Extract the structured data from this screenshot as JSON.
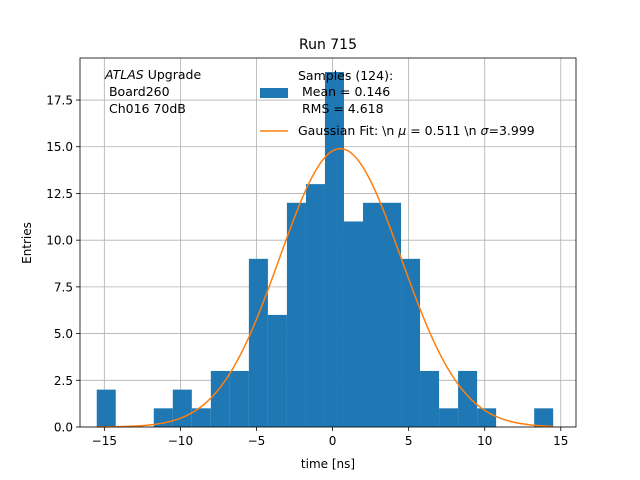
{
  "chart_data": {
    "type": "bar",
    "title": "Run 715",
    "xlabel": "time [ns]",
    "ylabel": "Entries",
    "xlim": [
      -16.6,
      16.0
    ],
    "ylim": [
      0,
      19.75
    ],
    "xticks": [
      -15,
      -10,
      -5,
      0,
      5,
      10,
      15
    ],
    "xtick_labels": [
      "−15",
      "−10",
      "−5",
      "0",
      "5",
      "10",
      "15"
    ],
    "yticks": [
      0,
      2.5,
      5,
      7.5,
      10,
      12.5,
      15,
      17.5
    ],
    "ytick_labels": [
      "0.0",
      "2.5",
      "5.0",
      "7.5",
      "10.0",
      "12.5",
      "15.0",
      "17.5"
    ],
    "grid": true,
    "histogram": {
      "bin_edges": [
        -15.5,
        -14.25,
        -13.0,
        -11.75,
        -10.5,
        -9.25,
        -8.0,
        -6.75,
        -5.5,
        -4.25,
        -3.0,
        -1.75,
        -0.5,
        0.75,
        2.0,
        3.25,
        4.5,
        5.75,
        7.0,
        8.25,
        9.5,
        10.75,
        12.0,
        13.25,
        14.5
      ],
      "counts": [
        2,
        0,
        0,
        1,
        2,
        1,
        3,
        3,
        9,
        6,
        12,
        13,
        19,
        11,
        12,
        12,
        9,
        3,
        1,
        3,
        1,
        0,
        0,
        1
      ],
      "color": "#1f77b4"
    },
    "gaussian_fit": {
      "mu": 0.511,
      "sigma": 3.999,
      "amplitude": 14.9,
      "x_range": [
        -15.5,
        14.5
      ],
      "color": "#ff7f0e"
    },
    "annotation": {
      "line1_italic": "ATLAS",
      "line1_rest": " Upgrade",
      "line2": " Board260",
      "line3": " Ch016 70dB"
    },
    "legend": {
      "placement": "top-right",
      "histogram_entry": [
        "Samples (124):",
        " Mean = 0.146",
        " RMS = 4.618"
      ],
      "fit_entry_prefix": "Gaussian Fit: \\n ",
      "fit_entry_mu_symbol": "μ",
      "fit_entry_mid": " = 0.511 \\n ",
      "fit_entry_sigma_symbol": "σ",
      "fit_entry_suffix": "=3.999"
    }
  }
}
